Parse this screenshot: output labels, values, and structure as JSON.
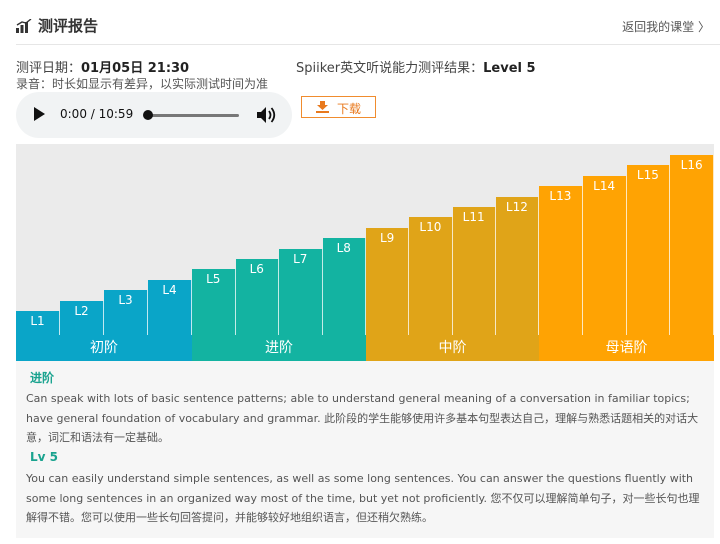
{
  "header": {
    "title": "测评报告",
    "back_link": "返回我的课堂 〉"
  },
  "meta": {
    "date_label": "测评日期：",
    "date_value": "01月05日 21:30",
    "result_label": "Spiiker英文听说能力测评结果：",
    "result_value": "Level 5",
    "recording_note": "录音：时长如显示有差异，以实际测试时间为准"
  },
  "player": {
    "time": "0:00 / 10:59",
    "progress": 0
  },
  "download": {
    "label": "下载"
  },
  "chart_data": {
    "type": "bar",
    "categories": [
      "L1",
      "L2",
      "L3",
      "L4",
      "L5",
      "L6",
      "L7",
      "L8",
      "L9",
      "L10",
      "L11",
      "L12",
      "L13",
      "L14",
      "L15",
      "L16"
    ],
    "values": [
      1,
      2,
      3,
      4,
      5,
      6,
      7,
      8,
      9,
      10,
      11,
      12,
      13,
      14,
      15,
      16
    ],
    "tiers": [
      {
        "name": "初阶",
        "levels": "L1-L4",
        "color": "#0aa5c8"
      },
      {
        "name": "进阶",
        "levels": "L5-L8",
        "color": "#13b3a1"
      },
      {
        "name": "中阶",
        "levels": "L9-L12",
        "color": "#e0a418"
      },
      {
        "name": "母语阶",
        "levels": "L13-L16",
        "color": "#ffa303"
      }
    ],
    "current_level": "L5"
  },
  "description": {
    "tier_name": "进阶",
    "tier_desc": "Can speak with lots of basic sentence patterns; able to understand general meaning of a conversation in familiar topics; have general foundation of vocabulary and grammar. 此阶段的学生能够使用许多基本句型表达自己，理解与熟悉话题相关的对话大意，词汇和语法有一定基础。",
    "level_name": "Lv 5",
    "level_desc": "You can easily understand simple sentences, as well as some long sentences. You can answer the questions fluently with some long sentences in an organized way most of the time, but yet not proficiently. 您不仅可以理解简单句子，对一些长句也理解得不错。您可以使用一些长句回答提问，并能够较好地组织语言，但还稍欠熟练。"
  }
}
